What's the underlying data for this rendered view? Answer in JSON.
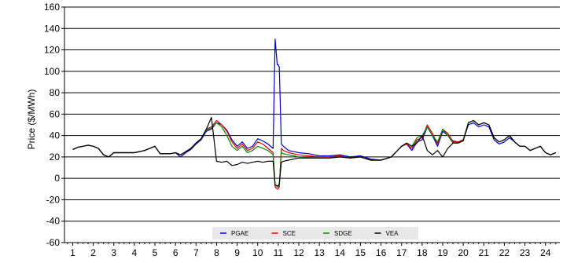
{
  "chart_data": {
    "type": "line",
    "title": "",
    "xlabel": "",
    "ylabel": "Price ($/MWh)",
    "ylim": [
      -60,
      160
    ],
    "y_ticks": [
      160,
      140,
      120,
      100,
      80,
      60,
      40,
      20,
      0,
      -20,
      -40,
      -60
    ],
    "xlim": [
      0.6,
      24.7
    ],
    "x_ticks": [
      1,
      2,
      3,
      4,
      5,
      6,
      7,
      8,
      9,
      10,
      11,
      12,
      13,
      14,
      15,
      16,
      17,
      18,
      19,
      20,
      21,
      22,
      23,
      24
    ],
    "grid": "horizontal",
    "legend_position": "bottom-center",
    "series": [
      {
        "name": "PGAE",
        "color": "#0000cc",
        "x": [
          1,
          1.25,
          1.5,
          1.75,
          2,
          2.25,
          2.5,
          2.75,
          3,
          3.5,
          4,
          4.5,
          5,
          5.25,
          5.5,
          5.75,
          6,
          6.25,
          6.5,
          6.75,
          7,
          7.25,
          7.5,
          7.75,
          8,
          8.25,
          8.5,
          8.75,
          9,
          9.25,
          9.5,
          9.75,
          10,
          10.25,
          10.5,
          10.75,
          10.85,
          10.95,
          11.0,
          11.05,
          11.15,
          11.25,
          11.5,
          11.75,
          12,
          12.5,
          13,
          13.5,
          14,
          14.5,
          15,
          15.5,
          16,
          16.5,
          17,
          17.25,
          17.5,
          17.75,
          18,
          18.25,
          18.5,
          18.75,
          19,
          19.25,
          19.5,
          19.75,
          20,
          20.25,
          20.5,
          20.75,
          21,
          21.25,
          21.5,
          21.75,
          22,
          22.25,
          22.5,
          22.75,
          23,
          23.25,
          23.5,
          23.75,
          24,
          24.25,
          24.5
        ],
        "y": [
          27,
          29,
          30,
          31,
          30,
          28,
          22,
          20,
          24,
          24,
          24,
          26,
          30,
          23,
          23,
          23,
          24,
          20,
          24,
          27,
          32,
          36,
          44,
          46,
          52,
          50,
          45,
          36,
          30,
          34,
          28,
          30,
          37,
          35,
          32,
          28,
          130,
          106,
          106,
          104,
          32,
          30,
          26,
          25,
          24,
          23,
          21,
          21,
          22,
          20,
          21,
          18,
          17,
          20,
          30,
          32,
          26,
          34,
          36,
          48,
          40,
          30,
          44,
          40,
          35,
          34,
          36,
          50,
          52,
          48,
          50,
          48,
          36,
          32,
          34,
          38,
          34,
          30,
          30,
          26,
          28,
          30,
          24,
          22,
          24
        ]
      },
      {
        "name": "SCE",
        "color": "#e00000",
        "x": [
          1,
          1.25,
          1.5,
          1.75,
          2,
          2.25,
          2.5,
          2.75,
          3,
          3.5,
          4,
          4.5,
          5,
          5.25,
          5.5,
          5.75,
          6,
          6.25,
          6.5,
          6.75,
          7,
          7.25,
          7.5,
          7.75,
          8,
          8.25,
          8.5,
          8.75,
          9,
          9.25,
          9.5,
          9.75,
          10,
          10.25,
          10.5,
          10.75,
          10.85,
          10.95,
          11.0,
          11.05,
          11.15,
          11.25,
          11.5,
          11.75,
          12,
          12.5,
          13,
          13.5,
          14,
          14.5,
          15,
          15.5,
          16,
          16.5,
          17,
          17.25,
          17.5,
          17.75,
          18,
          18.25,
          18.5,
          18.75,
          19,
          19.25,
          19.5,
          19.75,
          20,
          20.25,
          20.5,
          20.75,
          21,
          21.25,
          21.5,
          21.75,
          22,
          22.25,
          22.5,
          22.75,
          23,
          23.25,
          23.5,
          23.75,
          24,
          24.25,
          24.5
        ],
        "y": [
          27,
          29,
          30,
          31,
          30,
          28,
          22,
          20,
          24,
          24,
          24,
          26,
          30,
          23,
          23,
          23,
          24,
          22,
          25,
          28,
          33,
          37,
          46,
          48,
          54,
          50,
          44,
          34,
          28,
          32,
          26,
          28,
          34,
          32,
          28,
          24,
          -8,
          -10,
          -10,
          -8,
          28,
          26,
          24,
          23,
          22,
          21,
          20,
          20,
          21,
          19,
          20,
          17,
          17,
          20,
          30,
          32,
          28,
          36,
          38,
          50,
          42,
          32,
          46,
          42,
          34,
          34,
          36,
          52,
          54,
          50,
          52,
          50,
          38,
          34,
          36,
          40,
          34,
          30,
          30,
          26,
          28,
          30,
          24,
          22,
          24
        ]
      },
      {
        "name": "SDGE",
        "color": "#008800",
        "x": [
          1,
          1.25,
          1.5,
          1.75,
          2,
          2.25,
          2.5,
          2.75,
          3,
          3.5,
          4,
          4.5,
          5,
          5.25,
          5.5,
          5.75,
          6,
          6.25,
          6.5,
          6.75,
          7,
          7.25,
          7.5,
          7.75,
          8,
          8.25,
          8.5,
          8.75,
          9,
          9.25,
          9.5,
          9.75,
          10,
          10.25,
          10.5,
          10.75,
          10.85,
          10.95,
          11.0,
          11.05,
          11.15,
          11.25,
          11.5,
          11.75,
          12,
          12.5,
          13,
          13.5,
          14,
          14.5,
          15,
          15.5,
          16,
          16.5,
          17,
          17.25,
          17.5,
          17.75,
          18,
          18.25,
          18.5,
          18.75,
          19,
          19.25,
          19.5,
          19.75,
          20,
          20.25,
          20.5,
          20.75,
          21,
          21.25,
          21.5,
          21.75,
          22,
          22.25,
          22.5,
          22.75,
          23,
          23.25,
          23.5,
          23.75,
          24,
          24.25,
          24.5
        ],
        "y": [
          27,
          29,
          30,
          31,
          30,
          28,
          22,
          20,
          24,
          24,
          24,
          26,
          30,
          23,
          23,
          23,
          24,
          22,
          25,
          28,
          33,
          37,
          45,
          47,
          52,
          48,
          40,
          30,
          26,
          30,
          24,
          26,
          30,
          28,
          26,
          22,
          -6,
          -8,
          -8,
          -6,
          24,
          23,
          22,
          21,
          20,
          19,
          19,
          19,
          20,
          19,
          20,
          17,
          17,
          20,
          30,
          33,
          30,
          38,
          40,
          48,
          40,
          34,
          46,
          40,
          33,
          33,
          35,
          52,
          54,
          50,
          52,
          50,
          38,
          34,
          36,
          40,
          34,
          30,
          30,
          26,
          28,
          30,
          24,
          22,
          24
        ]
      },
      {
        "name": "VEA",
        "color": "#000000",
        "x": [
          1,
          1.25,
          1.5,
          1.75,
          2,
          2.25,
          2.5,
          2.75,
          3,
          3.5,
          4,
          4.5,
          5,
          5.25,
          5.5,
          5.75,
          6,
          6.25,
          6.5,
          6.75,
          7,
          7.25,
          7.5,
          7.75,
          8,
          8.25,
          8.5,
          8.75,
          9,
          9.25,
          9.5,
          9.75,
          10,
          10.25,
          10.5,
          10.75,
          10.85,
          10.95,
          11.0,
          11.05,
          11.15,
          11.25,
          11.5,
          11.75,
          12,
          12.5,
          13,
          13.5,
          14,
          14.5,
          15,
          15.5,
          16,
          16.5,
          17,
          17.25,
          17.5,
          17.75,
          18,
          18.25,
          18.5,
          18.75,
          19,
          19.25,
          19.5,
          19.75,
          20,
          20.25,
          20.5,
          20.75,
          21,
          21.25,
          21.5,
          21.75,
          22,
          22.25,
          22.5,
          22.75,
          23,
          23.25,
          23.5,
          23.75,
          24,
          24.25,
          24.5
        ],
        "y": [
          27,
          29,
          30,
          31,
          30,
          28,
          22,
          20,
          24,
          24,
          24,
          26,
          30,
          23,
          23,
          23,
          24,
          22,
          25,
          28,
          33,
          37,
          46,
          57,
          16,
          15,
          16,
          12,
          13,
          15,
          14,
          15,
          16,
          15,
          16,
          16,
          -6,
          -7,
          -7,
          -5,
          15,
          16,
          17,
          18,
          19,
          19,
          19,
          19,
          20,
          19,
          20,
          17,
          17,
          20,
          30,
          33,
          30,
          33,
          40,
          26,
          22,
          26,
          20,
          28,
          33,
          33,
          35,
          52,
          54,
          50,
          52,
          50,
          38,
          34,
          36,
          40,
          34,
          30,
          30,
          26,
          28,
          30,
          24,
          22,
          24
        ]
      }
    ]
  }
}
